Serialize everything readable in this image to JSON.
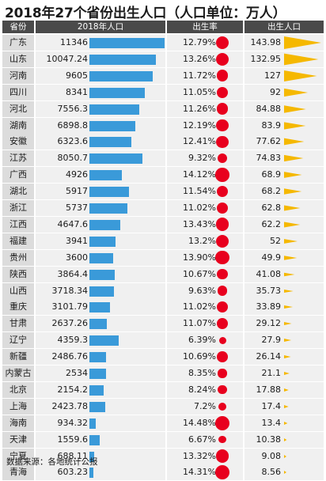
{
  "title": "2018年27个省份出生人口（人口单位：万人）",
  "source": "数据来源：各地统计公报",
  "colors": {
    "bar": "#3a9ad9",
    "dot": "#e8001e",
    "triangle": "#f5b800",
    "header_bg": "#4a4a4a"
  },
  "chart_data": {
    "type": "table",
    "columns": [
      "省份",
      "2018年人口",
      "出生率",
      "出生人口"
    ],
    "rows": [
      {
        "province": "广东",
        "population": "11346",
        "birth_rate": "12.79%",
        "births": "143.98"
      },
      {
        "province": "山东",
        "population": "10047.24",
        "birth_rate": "13.26%",
        "births": "132.95"
      },
      {
        "province": "河南",
        "population": "9605",
        "birth_rate": "11.72%",
        "births": "127"
      },
      {
        "province": "四川",
        "population": "8341",
        "birth_rate": "11.05%",
        "births": "92"
      },
      {
        "province": "河北",
        "population": "7556.3",
        "birth_rate": "11.26%",
        "births": "84.88"
      },
      {
        "province": "湖南",
        "population": "6898.8",
        "birth_rate": "12.19%",
        "births": "83.9"
      },
      {
        "province": "安徽",
        "population": "6323.6",
        "birth_rate": "12.41%",
        "births": "77.62"
      },
      {
        "province": "江苏",
        "population": "8050.7",
        "birth_rate": "9.32%",
        "births": "74.83"
      },
      {
        "province": "广西",
        "population": "4926",
        "birth_rate": "14.12%",
        "births": "68.9"
      },
      {
        "province": "湖北",
        "population": "5917",
        "birth_rate": "11.54%",
        "births": "68.2"
      },
      {
        "province": "浙江",
        "population": "5737",
        "birth_rate": "11.02%",
        "births": "62.8"
      },
      {
        "province": "江西",
        "population": "4647.6",
        "birth_rate": "13.43%",
        "births": "62.2"
      },
      {
        "province": "福建",
        "population": "3941",
        "birth_rate": "13.2%",
        "births": "52"
      },
      {
        "province": "贵州",
        "population": "3600",
        "birth_rate": "13.90%",
        "births": "49.9"
      },
      {
        "province": "陕西",
        "population": "3864.4",
        "birth_rate": "10.67%",
        "births": "41.08"
      },
      {
        "province": "山西",
        "population": "3718.34",
        "birth_rate": "9.63%",
        "births": "35.73"
      },
      {
        "province": "重庆",
        "population": "3101.79",
        "birth_rate": "11.02%",
        "births": "33.89"
      },
      {
        "province": "甘肃",
        "population": "2637.26",
        "birth_rate": "11.07%",
        "births": "29.12"
      },
      {
        "province": "辽宁",
        "population": "4359.3",
        "birth_rate": "6.39%",
        "births": "27.9"
      },
      {
        "province": "新疆",
        "population": "2486.76",
        "birth_rate": "10.69%",
        "births": "26.14"
      },
      {
        "province": "内蒙古",
        "population": "2534",
        "birth_rate": "8.35%",
        "births": "21.1"
      },
      {
        "province": "北京",
        "population": "2154.2",
        "birth_rate": "8.24%",
        "births": "17.88"
      },
      {
        "province": "上海",
        "population": "2423.78",
        "birth_rate": "7.2%",
        "births": "17.4"
      },
      {
        "province": "海南",
        "population": "934.32",
        "birth_rate": "14.48%",
        "births": "13.4"
      },
      {
        "province": "天津",
        "population": "1559.6",
        "birth_rate": "6.67%",
        "births": "10.38"
      },
      {
        "province": "宁夏",
        "population": "688.11",
        "birth_rate": "13.32%",
        "births": "9.08"
      },
      {
        "province": "青海",
        "population": "603.23",
        "birth_rate": "14.31%",
        "births": "8.56"
      }
    ]
  }
}
